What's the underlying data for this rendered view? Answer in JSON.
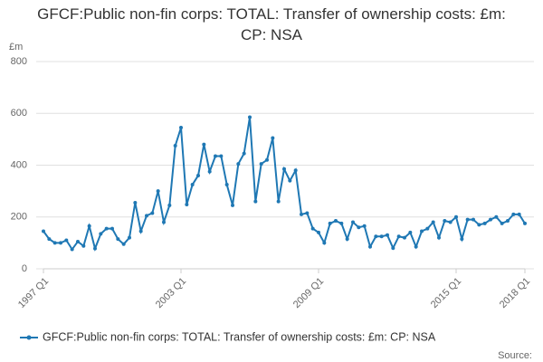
{
  "chart_data": {
    "type": "line",
    "title": "GFCF:Public non-fin corps: TOTAL: Transfer of ownership costs: £m: CP: NSA",
    "y_unit": "£m",
    "source": "Source:",
    "categories": [
      "1997 Q1",
      null,
      null,
      null,
      null,
      null,
      null,
      null,
      null,
      null,
      null,
      null,
      null,
      null,
      null,
      null,
      null,
      null,
      null,
      null,
      null,
      null,
      null,
      null,
      "2003 Q1",
      null,
      null,
      null,
      null,
      null,
      null,
      null,
      null,
      null,
      null,
      null,
      null,
      null,
      null,
      null,
      null,
      null,
      null,
      null,
      null,
      null,
      null,
      null,
      "2009 Q1",
      null,
      null,
      null,
      null,
      null,
      null,
      null,
      null,
      null,
      null,
      null,
      null,
      null,
      null,
      null,
      null,
      null,
      null,
      null,
      null,
      null,
      null,
      null,
      "2015 Q1",
      null,
      null,
      null,
      null,
      null,
      null,
      null,
      null,
      null,
      null,
      null,
      "2018 Q1"
    ],
    "series": [
      {
        "name": "GFCF:Public non-fin corps: TOTAL: Transfer of ownership costs: £m: CP: NSA",
        "color": "#1f78b4",
        "values": [
          145,
          115,
          100,
          100,
          110,
          75,
          105,
          88,
          165,
          78,
          135,
          155,
          155,
          115,
          95,
          120,
          255,
          145,
          205,
          215,
          300,
          180,
          245,
          475,
          545,
          248,
          325,
          360,
          480,
          375,
          435,
          435,
          325,
          245,
          405,
          445,
          585,
          260,
          405,
          420,
          505,
          260,
          385,
          340,
          380,
          210,
          215,
          155,
          140,
          100,
          175,
          185,
          175,
          115,
          180,
          160,
          165,
          85,
          125,
          125,
          130,
          80,
          125,
          120,
          140,
          85,
          145,
          155,
          180,
          120,
          185,
          180,
          200,
          115,
          190,
          190,
          170,
          175,
          190,
          200,
          175,
          185,
          210,
          210,
          175
        ]
      }
    ],
    "ylim": [
      0,
      800
    ],
    "yticks": [
      0,
      200,
      400,
      600,
      800
    ],
    "grid": true,
    "legend": "bottom"
  }
}
